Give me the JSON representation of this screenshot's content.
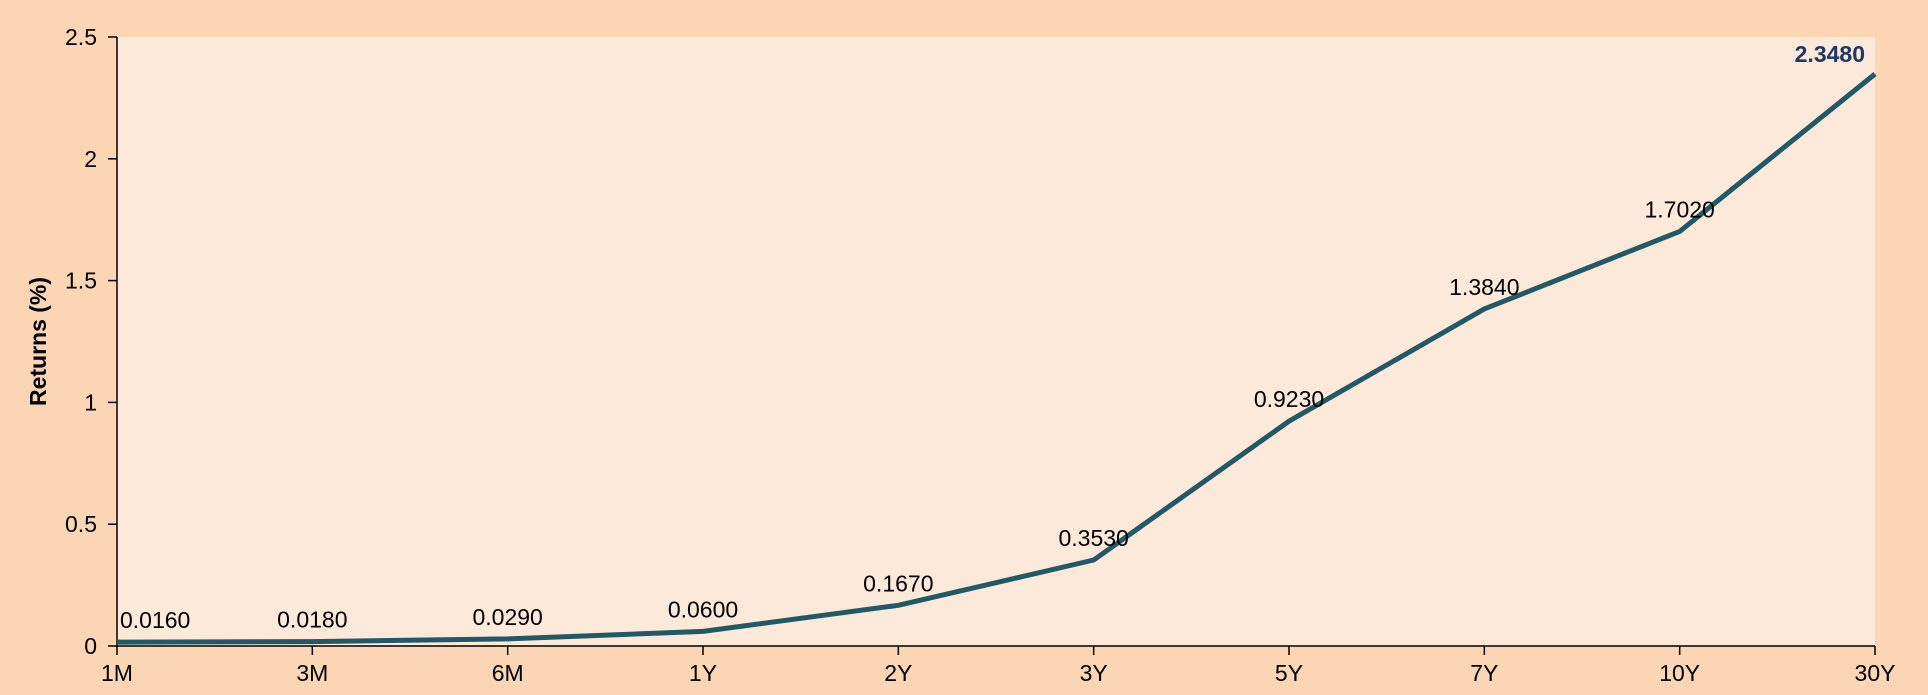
{
  "chart_data": {
    "type": "line",
    "title": "",
    "xlabel": "",
    "ylabel": "Returns (%)",
    "categories": [
      "1M",
      "3M",
      "6M",
      "1Y",
      "2Y",
      "3Y",
      "5Y",
      "7Y",
      "10Y",
      "30Y"
    ],
    "series": [
      {
        "values": [
          0.016,
          0.018,
          0.029,
          0.06,
          0.167,
          0.353,
          0.923,
          1.384,
          1.702,
          2.348
        ],
        "data_labels": [
          "0.0160",
          "0.0180",
          "0.0290",
          "0.0600",
          "0.1670",
          "0.3530",
          "0.9230",
          "1.3840",
          "1.7020",
          "2.3480"
        ]
      }
    ],
    "ylim": [
      0,
      2.5
    ],
    "yticks": [
      0,
      0.5,
      1,
      1.5,
      2,
      2.5
    ],
    "ytick_labels": [
      "0",
      "0.5",
      "1",
      "1.5",
      "2",
      "2.5"
    ],
    "grid": false,
    "legend": "none",
    "highlight_last_label": true,
    "colors": {
      "outer_background": "#fcd5b5",
      "plot_background": "#fde9d9",
      "line": "#215968",
      "highlight_label": "#1f3864",
      "axis": "#000000",
      "text": "#000000"
    }
  }
}
